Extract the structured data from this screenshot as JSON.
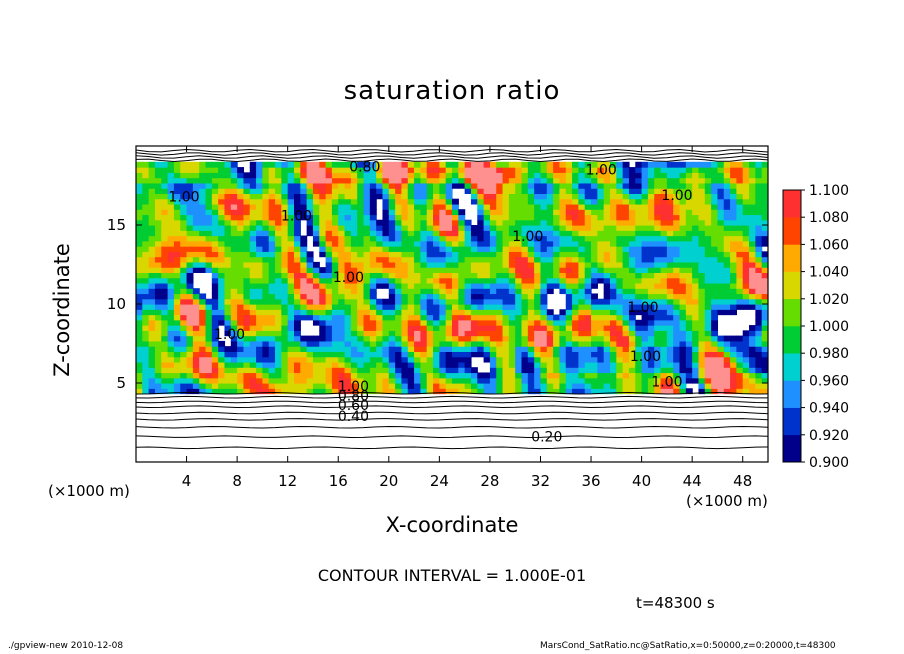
{
  "chart_data": {
    "type": "heatmap",
    "title": "saturation ratio",
    "xlabel": "X-coordinate",
    "ylabel": "Z-coordinate",
    "x_unit_left": "(×1000 m)",
    "x_unit_right": "(×1000 m)",
    "xlim": [
      0,
      50
    ],
    "ylim": [
      0,
      20
    ],
    "x_ticks": [
      4,
      8,
      12,
      16,
      20,
      24,
      28,
      32,
      36,
      40,
      44,
      48
    ],
    "y_ticks": [
      5,
      10,
      15
    ],
    "colorbar": {
      "levels": [
        0.9,
        0.92,
        0.94,
        0.96,
        0.98,
        1.0,
        1.02,
        1.04,
        1.06,
        1.08,
        1.1
      ],
      "labels": [
        "0.900",
        "0.920",
        "0.940",
        "0.960",
        "0.980",
        "1.000",
        "1.020",
        "1.040",
        "1.060",
        "1.080",
        "1.100"
      ],
      "colors": [
        "#6a0dad",
        "#00008b",
        "#0033cc",
        "#1e90ff",
        "#00d0d0",
        "#00cc33",
        "#66dd00",
        "#d8d800",
        "#ffaa00",
        "#ff4400",
        "#ff3030",
        "#ff9090"
      ]
    },
    "contour_labels": [
      {
        "text": "0.80",
        "x": 18.1,
        "z": 18.7
      },
      {
        "text": "1.00",
        "x": 3.8,
        "z": 16.8
      },
      {
        "text": "1.00",
        "x": 12.7,
        "z": 15.6
      },
      {
        "text": "1.00",
        "x": 16.8,
        "z": 11.7
      },
      {
        "text": "1.00",
        "x": 7.4,
        "z": 8.1
      },
      {
        "text": "1.00",
        "x": 31.0,
        "z": 14.3
      },
      {
        "text": "1.00",
        "x": 36.8,
        "z": 18.5
      },
      {
        "text": "1.00",
        "x": 42.8,
        "z": 16.9
      },
      {
        "text": "1.00",
        "x": 40.1,
        "z": 9.8
      },
      {
        "text": "1.00",
        "x": 40.3,
        "z": 6.7
      },
      {
        "text": "1.00",
        "x": 42.0,
        "z": 5.1
      },
      {
        "text": "1.00",
        "x": 17.2,
        "z": 4.8
      },
      {
        "text": "0.80",
        "x": 17.2,
        "z": 4.2
      },
      {
        "text": "0.60",
        "x": 17.2,
        "z": 3.6
      },
      {
        "text": "0.40",
        "x": 17.2,
        "z": 2.9
      },
      {
        "text": "0.20",
        "x": 32.5,
        "z": 1.6
      }
    ]
  },
  "contour_interval": "CONTOUR INTERVAL = 1.000E-01",
  "time_label": "t=48300 s",
  "footer_left": "./gpview-new   2010-12-08",
  "footer_right": "MarsCond_SatRatio.nc@SatRatio,x=0:50000,z=0:20000,t=48300"
}
